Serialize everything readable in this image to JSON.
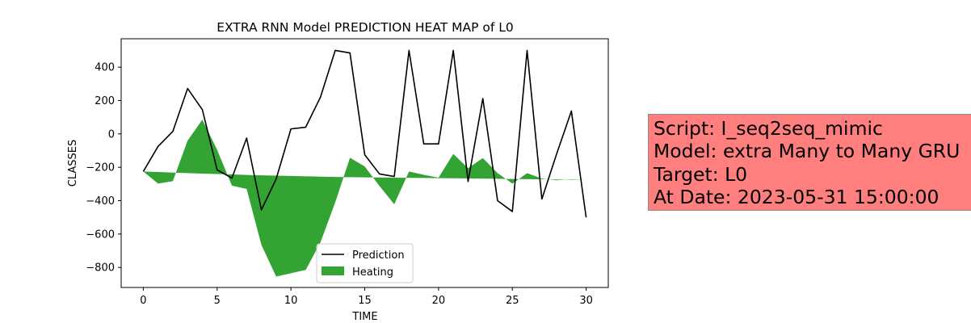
{
  "chart_data": {
    "type": "line",
    "title": "EXTRA RNN Model PREDICTION HEAT MAP of L0",
    "xlabel": "TIME",
    "ylabel": "CLASSES",
    "xlim": [
      -1.5,
      31.5
    ],
    "ylim": [
      -920,
      570
    ],
    "xticks": [
      0,
      5,
      10,
      15,
      20,
      25,
      30
    ],
    "yticks": [
      -800,
      -600,
      -400,
      -200,
      0,
      200,
      400
    ],
    "x": [
      0,
      1,
      2,
      3,
      4,
      5,
      6,
      7,
      8,
      9,
      10,
      11,
      12,
      13,
      14,
      15,
      16,
      17,
      18,
      19,
      20,
      21,
      22,
      23,
      24,
      25,
      26,
      27,
      28,
      29,
      30
    ],
    "series": [
      {
        "name": "Prediction",
        "kind": "line",
        "color": "#000000",
        "values": [
          -225,
          -75,
          15,
          272,
          145,
          -215,
          -265,
          -25,
          -455,
          -270,
          30,
          40,
          220,
          500,
          485,
          -125,
          -240,
          -255,
          500,
          -60,
          -60,
          500,
          -285,
          212,
          -400,
          -465,
          500,
          -390,
          -120,
          137,
          -500
        ]
      },
      {
        "name": "Heating",
        "kind": "fill_between",
        "color": "#2ca02c",
        "values": [
          -225,
          -298,
          -283,
          -40,
          85,
          -95,
          -310,
          -330,
          -665,
          -855,
          -835,
          -815,
          -650,
          -410,
          -143,
          -195,
          -312,
          -422,
          -225,
          -245,
          -262,
          -120,
          -205,
          -145,
          -235,
          -298,
          -235,
          -268,
          -278,
          -272,
          -275
        ],
        "baseline": [
          -225,
          -228,
          -232,
          -235,
          -238,
          -240,
          -243,
          -246,
          -248,
          -250,
          -252,
          -254,
          -256,
          -258,
          -259,
          -260,
          -261,
          -262,
          -263,
          -264,
          -265,
          -266,
          -267,
          -268,
          -269,
          -270,
          -271,
          -272,
          -273,
          -274,
          -275
        ]
      }
    ],
    "grid": false,
    "legend": "lower center"
  },
  "info_box": {
    "lines": [
      "Script: I_seq2seq_mimic",
      "Model: extra Many to Many GRU",
      "Target: L0",
      "At Date: 2023-05-31 15:00:00"
    ],
    "background": "#ff7f7f"
  }
}
